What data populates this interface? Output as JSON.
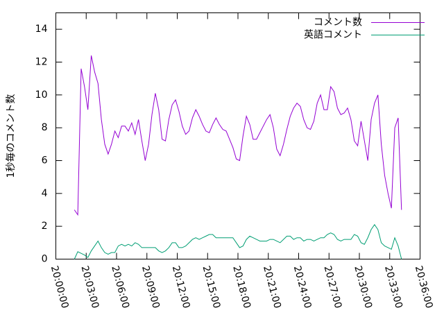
{
  "chart_data": {
    "type": "line",
    "ylabel": "1秒毎のコメント数",
    "legend": "top right",
    "xlim": [
      "20:00:00",
      "20:36:00"
    ],
    "xticks": [
      "20:00:00",
      "20:03:00",
      "20:06:00",
      "20:09:00",
      "20:12:00",
      "20:15:00",
      "20:18:00",
      "20:21:00",
      "20:24:00",
      "20:27:00",
      "20:30:00",
      "20:33:00",
      "20:36:00"
    ],
    "ylim": [
      0,
      15
    ],
    "yticks": [
      0,
      2,
      4,
      6,
      8,
      10,
      12,
      14
    ],
    "x": [
      "20:01:50",
      "20:02:10",
      "20:02:30",
      "20:02:50",
      "20:03:10",
      "20:03:30",
      "20:03:50",
      "20:04:10",
      "20:04:30",
      "20:04:50",
      "20:05:10",
      "20:05:30",
      "20:05:50",
      "20:06:10",
      "20:06:30",
      "20:06:50",
      "20:07:10",
      "20:07:30",
      "20:07:50",
      "20:08:10",
      "20:08:30",
      "20:08:50",
      "20:09:10",
      "20:09:30",
      "20:09:50",
      "20:10:10",
      "20:10:30",
      "20:10:50",
      "20:11:10",
      "20:11:30",
      "20:11:50",
      "20:12:10",
      "20:12:30",
      "20:12:50",
      "20:13:10",
      "20:13:30",
      "20:13:50",
      "20:14:10",
      "20:14:30",
      "20:14:50",
      "20:15:10",
      "20:15:30",
      "20:15:50",
      "20:16:10",
      "20:16:30",
      "20:16:50",
      "20:17:10",
      "20:17:30",
      "20:17:50",
      "20:18:10",
      "20:18:30",
      "20:18:50",
      "20:19:10",
      "20:19:30",
      "20:19:50",
      "20:20:10",
      "20:20:30",
      "20:20:50",
      "20:21:10",
      "20:21:30",
      "20:21:50",
      "20:22:10",
      "20:22:30",
      "20:22:50",
      "20:23:10",
      "20:23:30",
      "20:23:50",
      "20:24:10",
      "20:24:30",
      "20:24:50",
      "20:25:10",
      "20:25:30",
      "20:25:50",
      "20:26:10",
      "20:26:30",
      "20:26:50",
      "20:27:10",
      "20:27:30",
      "20:27:50",
      "20:28:10",
      "20:28:30",
      "20:28:50",
      "20:29:10",
      "20:29:30",
      "20:29:50",
      "20:30:10",
      "20:30:30",
      "20:30:50",
      "20:31:10",
      "20:31:30",
      "20:31:50",
      "20:32:10",
      "20:32:30",
      "20:32:50",
      "20:33:10",
      "20:33:30",
      "20:33:50",
      "20:34:10"
    ],
    "series": [
      {
        "name": "コメント数",
        "color": "#9400d3",
        "values": [
          3.0,
          2.7,
          11.6,
          10.5,
          9.1,
          12.4,
          11.4,
          10.7,
          8.5,
          7.0,
          6.4,
          7.0,
          7.8,
          7.4,
          8.1,
          8.1,
          7.8,
          8.3,
          7.6,
          8.5,
          7.2,
          6.0,
          7.0,
          8.8,
          10.1,
          9.1,
          7.3,
          7.2,
          8.5,
          9.4,
          9.7,
          9.0,
          8.1,
          7.6,
          7.8,
          8.6,
          9.1,
          8.7,
          8.2,
          7.8,
          7.7,
          8.2,
          8.6,
          8.2,
          7.9,
          7.8,
          7.3,
          6.8,
          6.1,
          6.0,
          7.5,
          8.7,
          8.2,
          7.3,
          7.3,
          7.7,
          8.1,
          8.5,
          8.8,
          8.0,
          6.7,
          6.3,
          7.0,
          7.9,
          8.7,
          9.2,
          9.5,
          9.3,
          8.5,
          8.0,
          7.9,
          8.4,
          9.5,
          10.0,
          9.1,
          9.1,
          10.5,
          10.2,
          9.2,
          8.8,
          8.9,
          9.2,
          8.5,
          7.2,
          6.9,
          8.4,
          7.2,
          6.0,
          8.5,
          9.5,
          10.0,
          7.0,
          5.1,
          4.0,
          3.1,
          8.0,
          8.6,
          3.0
        ]
      },
      {
        "name": "英語コメント",
        "color": "#009e73",
        "values": [
          0.0,
          0.45,
          0.35,
          0.25,
          0.1,
          0.5,
          0.8,
          1.1,
          0.7,
          0.4,
          0.3,
          0.4,
          0.4,
          0.8,
          0.9,
          0.8,
          0.9,
          0.8,
          1.0,
          0.9,
          0.7,
          0.7,
          0.7,
          0.7,
          0.7,
          0.5,
          0.4,
          0.5,
          0.7,
          1.0,
          1.0,
          0.7,
          0.7,
          0.8,
          1.0,
          1.2,
          1.3,
          1.2,
          1.3,
          1.4,
          1.5,
          1.5,
          1.3,
          1.3,
          1.3,
          1.3,
          1.3,
          1.3,
          1.0,
          0.7,
          0.8,
          1.2,
          1.4,
          1.3,
          1.2,
          1.1,
          1.1,
          1.1,
          1.2,
          1.2,
          1.1,
          1.0,
          1.2,
          1.4,
          1.4,
          1.2,
          1.3,
          1.3,
          1.1,
          1.2,
          1.2,
          1.1,
          1.2,
          1.3,
          1.3,
          1.5,
          1.6,
          1.5,
          1.2,
          1.1,
          1.2,
          1.2,
          1.2,
          1.5,
          1.4,
          1.0,
          0.9,
          1.3,
          1.8,
          2.1,
          1.8,
          1.0,
          0.8,
          0.7,
          0.6,
          1.3,
          0.8,
          0.0
        ]
      }
    ]
  }
}
